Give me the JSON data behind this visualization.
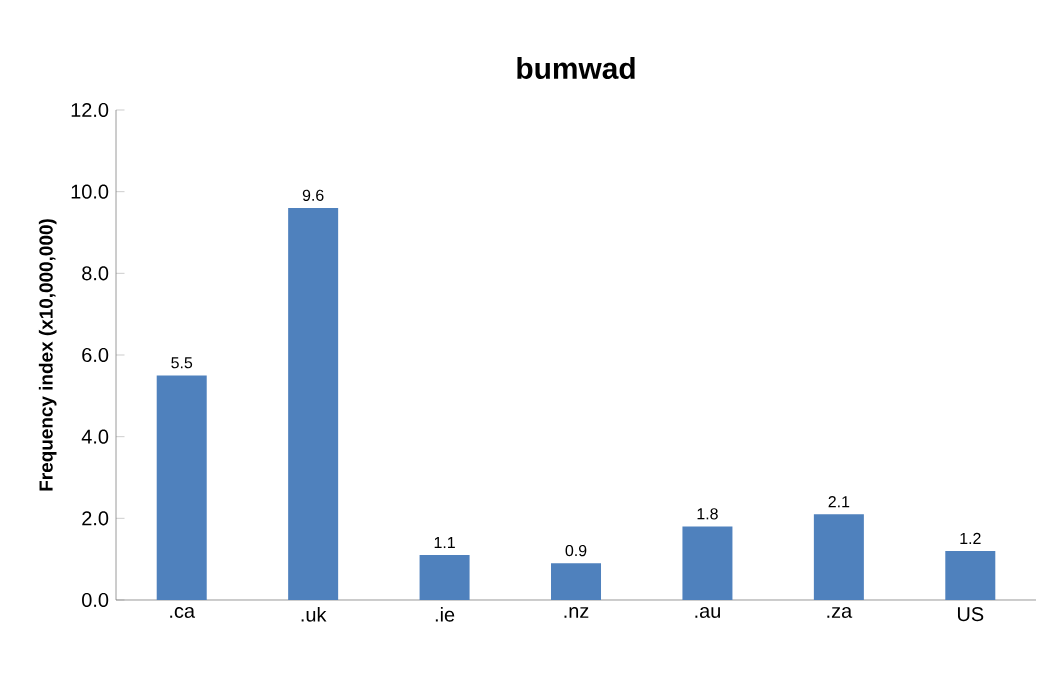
{
  "chart_data": {
    "type": "bar",
    "title": "bumwad",
    "ylabel": "Frequency index (x10,000,000)",
    "categories": [
      ".ca",
      ".uk",
      ".ie",
      ".nz",
      ".au",
      ".za",
      "US"
    ],
    "values": [
      5.5,
      9.6,
      1.1,
      0.9,
      1.8,
      2.1,
      1.2
    ],
    "color": "#4f81bd",
    "ylim": [
      0,
      12
    ],
    "yticks": [
      {
        "value": 0,
        "label": "0.0"
      },
      {
        "value": 2,
        "label": "2.0"
      },
      {
        "value": 4,
        "label": "4.0"
      },
      {
        "value": 6,
        "label": "6.0"
      },
      {
        "value": 8,
        "label": "8.0"
      },
      {
        "value": 10,
        "label": "10.0"
      },
      {
        "value": 12,
        "label": "12.0"
      }
    ],
    "data_labels": true
  }
}
